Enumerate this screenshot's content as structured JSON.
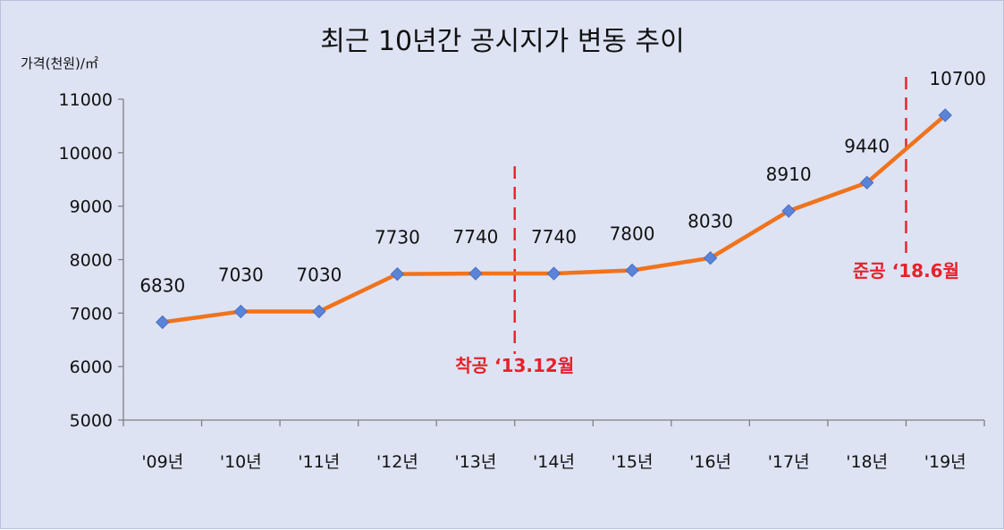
{
  "chart_data": {
    "type": "line",
    "title": "최근 10년간 공시지가 변동 추이",
    "ylabel": "가격(천원)/㎡",
    "xlabel": "",
    "categories": [
      "'09년",
      "'10년",
      "'11년",
      "'12년",
      "'13년",
      "'14년",
      "'15년",
      "'16년",
      "'17년",
      "'18년",
      "'19년"
    ],
    "series": [
      {
        "values": [
          6830,
          7030,
          7030,
          7730,
          7740,
          7740,
          7800,
          8030,
          8910,
          9440,
          10700
        ],
        "labels": [
          "6830",
          "7030",
          "7030",
          "7730",
          "7740",
          "7740",
          "7800",
          "8030",
          "8910",
          "9440",
          "10700"
        ]
      }
    ],
    "ylim": [
      5000,
      11000
    ],
    "yticks": [
      "5000",
      "6000",
      "7000",
      "8000",
      "9000",
      "10000",
      "11000"
    ],
    "grid": false,
    "line_color": "#f0731d",
    "marker_color": "#5b84d8",
    "annotations": [
      {
        "text": "착공 ‘13.12월",
        "boundary_after": 4,
        "color": "#e8202a"
      },
      {
        "text": "준공 ‘18.6월",
        "boundary_after": 9,
        "color": "#e8202a"
      }
    ]
  }
}
